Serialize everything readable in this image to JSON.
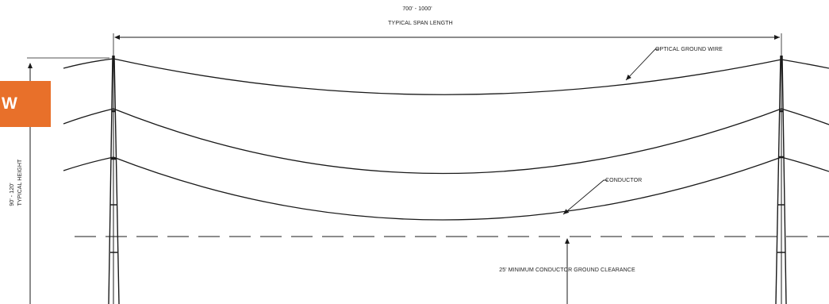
{
  "labels": {
    "span_range": "700' - 1000'",
    "span_label": "TYPICAL SPAN LENGTH",
    "optical_ground_wire": "OPTICAL GROUND WIRE",
    "conductor": "CONDUCTOR",
    "height_range": "90' - 120'",
    "height_label": "TYPICAL HEIGHT",
    "clearance": "25' MINIMUM CONDUCTOR GROUND CLEARANCE"
  },
  "badge": {
    "text": "W"
  },
  "colors": {
    "line": "#1a1a1a",
    "badge": "#e8702a"
  }
}
